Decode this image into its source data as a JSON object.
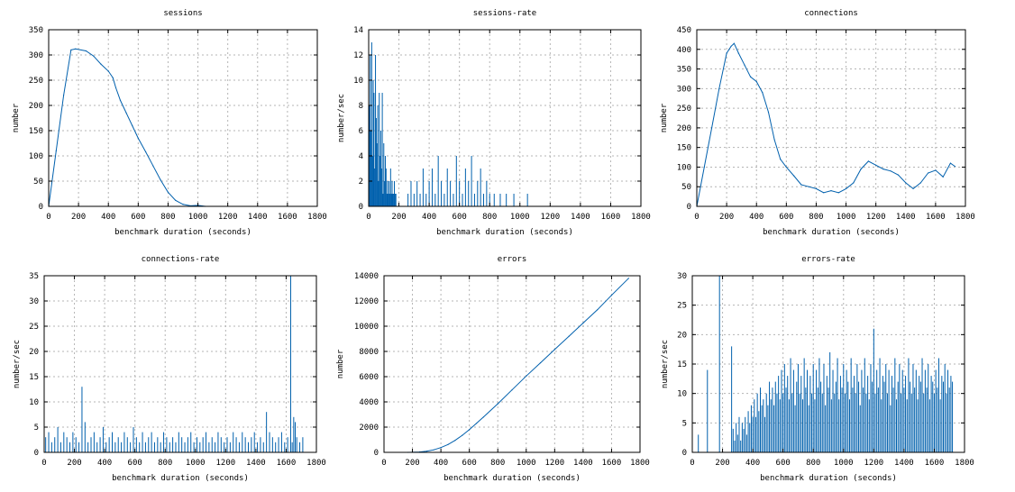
{
  "chart_data": [
    {
      "id": "sessions",
      "type": "line",
      "title": "sessions",
      "xlabel": "benchmark duration (seconds)",
      "ylabel": "number",
      "xlim": [
        0,
        1800
      ],
      "ylim": [
        0,
        350
      ],
      "xticks": [
        0,
        200,
        400,
        600,
        800,
        1000,
        1200,
        1400,
        1600,
        1800
      ],
      "yticks": [
        0,
        50,
        100,
        150,
        200,
        250,
        300,
        350
      ],
      "grid": true,
      "color": "#0060ad",
      "x": [
        0,
        50,
        100,
        150,
        180,
        250,
        300,
        350,
        400,
        430,
        450,
        480,
        520,
        560,
        600,
        650,
        700,
        750,
        800,
        850,
        900,
        950,
        1000,
        1050
      ],
      "y": [
        0,
        110,
        220,
        310,
        312,
        308,
        298,
        282,
        268,
        255,
        235,
        210,
        185,
        160,
        135,
        108,
        80,
        52,
        28,
        12,
        4,
        1,
        2,
        0
      ]
    },
    {
      "id": "sessions-rate",
      "type": "impulse",
      "title": "sessions-rate",
      "xlabel": "benchmark duration (seconds)",
      "ylabel": "number/sec",
      "xlim": [
        0,
        1800
      ],
      "ylim": [
        0,
        14
      ],
      "xticks": [
        0,
        200,
        400,
        600,
        800,
        1000,
        1200,
        1400,
        1600,
        1800
      ],
      "yticks": [
        0,
        2,
        4,
        6,
        8,
        10,
        12,
        14
      ],
      "grid": true,
      "color": "#0060ad",
      "x": [
        5,
        10,
        15,
        20,
        25,
        30,
        35,
        40,
        45,
        50,
        55,
        60,
        65,
        70,
        75,
        80,
        85,
        90,
        95,
        100,
        105,
        110,
        115,
        120,
        125,
        130,
        135,
        140,
        145,
        150,
        155,
        160,
        165,
        170,
        175,
        180,
        260,
        280,
        300,
        320,
        340,
        360,
        380,
        400,
        420,
        440,
        460,
        480,
        500,
        520,
        540,
        560,
        580,
        600,
        620,
        640,
        660,
        680,
        700,
        720,
        740,
        760,
        780,
        800,
        830,
        870,
        910,
        960,
        1050
      ],
      "y": [
        8,
        12,
        6,
        13,
        4,
        10,
        9,
        3,
        12,
        7,
        5,
        8,
        2,
        9,
        4,
        6,
        3,
        9,
        1,
        5,
        2,
        4,
        3,
        1,
        2,
        1,
        2,
        1,
        3,
        1,
        2,
        1,
        1,
        2,
        1,
        1,
        1,
        2,
        1,
        2,
        1,
        3,
        1,
        2,
        3,
        1,
        4,
        2,
        1,
        3,
        2,
        1,
        4,
        2,
        1,
        3,
        2,
        4,
        1,
        2,
        3,
        1,
        2,
        1,
        1,
        1,
        1,
        1,
        1
      ]
    },
    {
      "id": "connections",
      "type": "line",
      "title": "connections",
      "xlabel": "benchmark duration (seconds)",
      "ylabel": "number",
      "xlim": [
        0,
        1800
      ],
      "ylim": [
        0,
        450
      ],
      "xticks": [
        0,
        200,
        400,
        600,
        800,
        1000,
        1200,
        1400,
        1600,
        1800
      ],
      "yticks": [
        0,
        50,
        100,
        150,
        200,
        250,
        300,
        350,
        400,
        450
      ],
      "grid": true,
      "color": "#0060ad",
      "x": [
        0,
        50,
        100,
        150,
        200,
        230,
        250,
        280,
        320,
        360,
        400,
        440,
        480,
        520,
        560,
        600,
        650,
        700,
        750,
        800,
        850,
        900,
        950,
        1000,
        1050,
        1100,
        1150,
        1200,
        1250,
        1300,
        1350,
        1400,
        1450,
        1500,
        1550,
        1600,
        1650,
        1700,
        1730
      ],
      "y": [
        0,
        100,
        200,
        300,
        390,
        408,
        415,
        390,
        360,
        330,
        318,
        290,
        240,
        170,
        120,
        100,
        78,
        55,
        50,
        45,
        35,
        40,
        35,
        45,
        60,
        95,
        115,
        105,
        95,
        90,
        80,
        60,
        45,
        60,
        85,
        92,
        75,
        110,
        102
      ]
    },
    {
      "id": "connections-rate",
      "type": "impulse",
      "title": "connections-rate",
      "xlabel": "benchmark duration (seconds)",
      "ylabel": "number/sec",
      "xlim": [
        0,
        1800
      ],
      "ylim": [
        0,
        35
      ],
      "xticks": [
        0,
        200,
        400,
        600,
        800,
        1000,
        1200,
        1400,
        1600,
        1800
      ],
      "yticks": [
        0,
        5,
        10,
        15,
        20,
        25,
        30,
        35
      ],
      "grid": true,
      "color": "#0060ad",
      "x": [
        10,
        30,
        50,
        70,
        90,
        110,
        130,
        150,
        170,
        190,
        210,
        230,
        250,
        270,
        290,
        310,
        330,
        350,
        370,
        390,
        410,
        430,
        450,
        470,
        490,
        510,
        530,
        550,
        570,
        590,
        610,
        630,
        650,
        670,
        690,
        710,
        730,
        750,
        770,
        790,
        810,
        830,
        850,
        870,
        890,
        910,
        930,
        950,
        970,
        990,
        1010,
        1030,
        1050,
        1070,
        1090,
        1110,
        1130,
        1150,
        1170,
        1190,
        1210,
        1230,
        1250,
        1270,
        1290,
        1310,
        1330,
        1350,
        1370,
        1390,
        1410,
        1430,
        1450,
        1470,
        1490,
        1510,
        1530,
        1550,
        1570,
        1590,
        1610,
        1630,
        1640,
        1650,
        1660,
        1670,
        1690,
        1710
      ],
      "y": [
        3,
        4,
        2,
        3,
        5,
        2,
        4,
        3,
        2,
        4,
        3,
        2,
        13,
        6,
        2,
        3,
        4,
        2,
        3,
        5,
        2,
        3,
        4,
        2,
        3,
        2,
        4,
        3,
        2,
        5,
        3,
        2,
        4,
        2,
        3,
        4,
        2,
        3,
        2,
        4,
        3,
        2,
        3,
        2,
        4,
        3,
        2,
        3,
        4,
        2,
        3,
        2,
        3,
        4,
        2,
        3,
        2,
        4,
        3,
        2,
        3,
        2,
        4,
        3,
        2,
        4,
        3,
        2,
        3,
        4,
        2,
        3,
        2,
        8,
        4,
        3,
        2,
        3,
        4,
        2,
        3,
        35,
        2,
        7,
        6,
        3,
        2,
        3
      ]
    },
    {
      "id": "errors",
      "type": "line",
      "title": "errors",
      "xlabel": "benchmark duration (seconds)",
      "ylabel": "number",
      "xlim": [
        0,
        1800
      ],
      "ylim": [
        0,
        14000
      ],
      "xticks": [
        0,
        200,
        400,
        600,
        800,
        1000,
        1200,
        1400,
        1600,
        1800
      ],
      "yticks": [
        0,
        2000,
        4000,
        6000,
        8000,
        10000,
        12000,
        14000
      ],
      "grid": true,
      "color": "#0060ad",
      "x": [
        170,
        250,
        300,
        350,
        400,
        450,
        500,
        550,
        600,
        650,
        700,
        800,
        900,
        1000,
        1100,
        1200,
        1300,
        1400,
        1500,
        1600,
        1720
      ],
      "y": [
        0,
        30,
        90,
        200,
        380,
        620,
        950,
        1350,
        1800,
        2300,
        2800,
        3850,
        4950,
        6050,
        7100,
        8150,
        9200,
        10250,
        11300,
        12450,
        13800
      ]
    },
    {
      "id": "errors-rate",
      "type": "impulse",
      "title": "errors-rate",
      "xlabel": "benchmark duration (seconds)",
      "ylabel": "number/sec",
      "xlim": [
        0,
        1800
      ],
      "ylim": [
        0,
        30
      ],
      "xticks": [
        0,
        200,
        400,
        600,
        800,
        1000,
        1200,
        1400,
        1600,
        1800
      ],
      "yticks": [
        0,
        5,
        10,
        15,
        20,
        25,
        30
      ],
      "grid": true,
      "color": "#0060ad",
      "x": [
        40,
        100,
        180,
        260,
        270,
        280,
        290,
        300,
        310,
        320,
        330,
        340,
        350,
        360,
        370,
        380,
        390,
        400,
        410,
        420,
        430,
        440,
        450,
        460,
        470,
        480,
        490,
        500,
        510,
        520,
        530,
        540,
        550,
        560,
        570,
        580,
        590,
        600,
        610,
        620,
        630,
        640,
        650,
        660,
        670,
        680,
        690,
        700,
        710,
        720,
        730,
        740,
        750,
        760,
        770,
        780,
        790,
        800,
        810,
        820,
        830,
        840,
        850,
        860,
        870,
        880,
        890,
        900,
        910,
        920,
        930,
        940,
        950,
        960,
        970,
        980,
        990,
        1000,
        1010,
        1020,
        1030,
        1040,
        1050,
        1060,
        1070,
        1080,
        1090,
        1100,
        1110,
        1120,
        1130,
        1140,
        1150,
        1160,
        1170,
        1180,
        1190,
        1200,
        1210,
        1220,
        1230,
        1240,
        1250,
        1260,
        1270,
        1280,
        1290,
        1300,
        1310,
        1320,
        1330,
        1340,
        1350,
        1360,
        1370,
        1380,
        1390,
        1400,
        1410,
        1420,
        1430,
        1440,
        1450,
        1460,
        1470,
        1480,
        1490,
        1500,
        1510,
        1520,
        1530,
        1540,
        1550,
        1560,
        1570,
        1580,
        1590,
        1600,
        1610,
        1620,
        1630,
        1640,
        1650,
        1660,
        1670,
        1680,
        1690,
        1700,
        1710,
        1720
      ],
      "y": [
        3,
        14,
        30,
        18,
        4,
        2,
        5,
        3,
        6,
        2,
        5,
        4,
        6,
        3,
        7,
        5,
        8,
        6,
        9,
        6,
        10,
        7,
        11,
        8,
        9,
        6,
        10,
        8,
        12,
        9,
        11,
        8,
        12,
        10,
        13,
        9,
        14,
        10,
        15,
        11,
        13,
        9,
        16,
        10,
        14,
        8,
        12,
        15,
        10,
        13,
        9,
        16,
        11,
        14,
        8,
        13,
        10,
        15,
        9,
        14,
        11,
        16,
        12,
        10,
        15,
        8,
        13,
        11,
        17,
        9,
        14,
        10,
        12,
        16,
        9,
        13,
        11,
        15,
        10,
        14,
        12,
        9,
        16,
        11,
        13,
        10,
        15,
        12,
        8,
        14,
        11,
        16,
        10,
        13,
        9,
        15,
        12,
        21,
        10,
        14,
        11,
        16,
        9,
        13,
        12,
        15,
        10,
        14,
        8,
        13,
        11,
        16,
        9,
        12,
        15,
        10,
        14,
        11,
        13,
        9,
        16,
        12,
        10,
        15,
        11,
        14,
        9,
        13,
        12,
        16,
        10,
        14,
        11,
        15,
        9,
        13,
        12,
        10,
        14,
        11,
        16,
        9,
        13,
        12,
        15,
        10,
        14,
        11,
        13,
        12
      ]
    }
  ]
}
